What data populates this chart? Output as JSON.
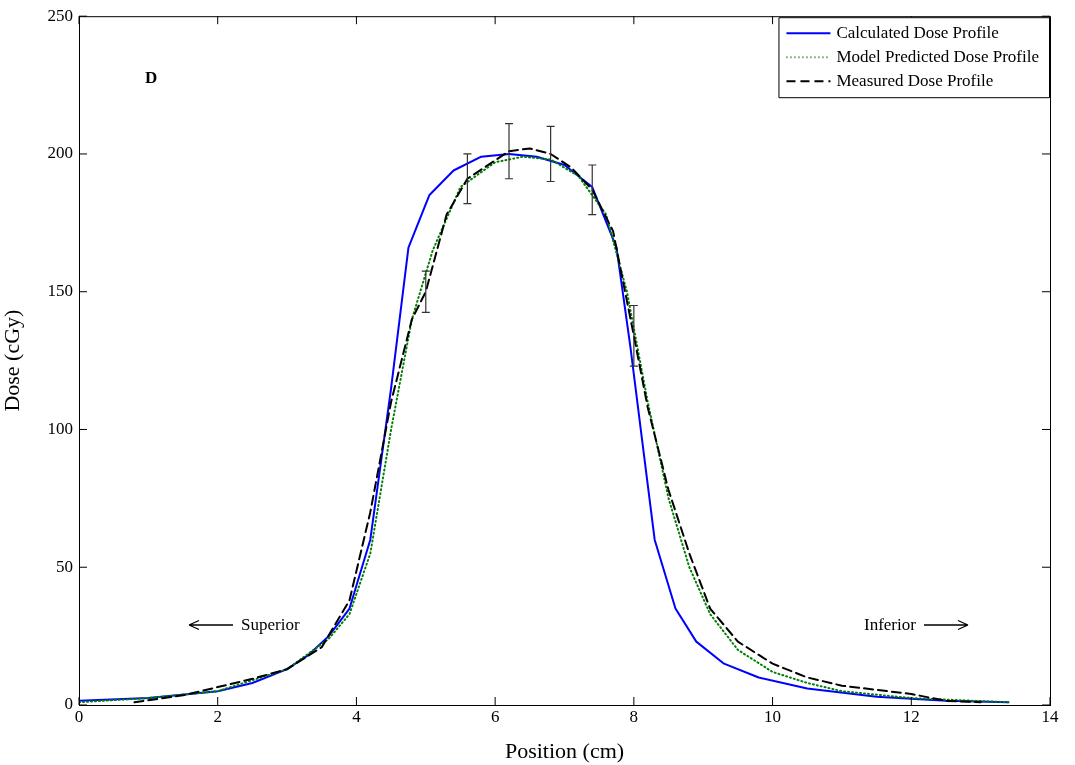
{
  "chart_data": {
    "type": "line",
    "xlabel": "Position (cm)",
    "ylabel": "Dose (cGy)",
    "xlim": [
      0,
      14
    ],
    "xticks": [
      0,
      2,
      4,
      6,
      8,
      10,
      12,
      14
    ],
    "ylim": [
      0,
      250
    ],
    "yticks": [
      0,
      50,
      100,
      150,
      200,
      250
    ],
    "grid": false,
    "legend": "top right",
    "marker": "none",
    "annotations": [
      "D",
      "Superior",
      "Inferior"
    ],
    "series": [
      {
        "name": "Calculated Dose Profile",
        "color": "#0000ff",
        "line_style": "solid",
        "x": [
          0,
          1,
          2,
          2.5,
          3,
          3.3,
          3.6,
          3.9,
          4.2,
          4.5,
          4.75,
          5.05,
          5.4,
          5.8,
          6.2,
          6.6,
          7,
          7.4,
          7.75,
          7.95,
          8.15,
          8.3,
          8.6,
          8.9,
          9.3,
          9.8,
          10.5,
          11.5,
          12.5,
          13.4
        ],
        "values": [
          1.5,
          2.5,
          5,
          8,
          13,
          18,
          25,
          35,
          60,
          115,
          166,
          185,
          194,
          199,
          200,
          199,
          196,
          188,
          166,
          130,
          90,
          60,
          35,
          23,
          15,
          10,
          6,
          3,
          1.5,
          1
        ]
      },
      {
        "name": "Model Predicted Dose Profile",
        "color": "#008000",
        "line_style": "dotted",
        "x": [
          0,
          1,
          2,
          3,
          3.6,
          3.9,
          4.2,
          4.5,
          4.8,
          5.1,
          5.5,
          6,
          6.4,
          6.8,
          7.2,
          7.6,
          7.9,
          8.2,
          8.5,
          8.8,
          9.1,
          9.5,
          10,
          10.5,
          11,
          12,
          13.4
        ],
        "values": [
          1,
          2.5,
          5,
          13,
          24,
          33,
          55,
          100,
          140,
          165,
          188,
          197,
          199,
          198,
          192,
          178,
          150,
          110,
          75,
          50,
          33,
          20,
          12,
          8,
          5,
          2.5,
          1
        ]
      },
      {
        "name": "Measured Dose Profile",
        "color": "#000000",
        "line_style": "dashed",
        "x": [
          0.8,
          1.5,
          2,
          2.5,
          3,
          3.5,
          3.9,
          4.2,
          4.5,
          4.8,
          5,
          5.3,
          5.6,
          6.2,
          6.5,
          6.8,
          7.1,
          7.4,
          7.7,
          8,
          8.2,
          8.5,
          8.8,
          9.1,
          9.5,
          10,
          10.5,
          11,
          11.5,
          12,
          12.5,
          13
        ],
        "values": [
          1,
          3.5,
          6.5,
          9.5,
          13,
          21,
          38,
          70,
          110,
          140,
          150,
          178,
          191,
          201,
          202,
          200,
          195,
          187,
          172,
          134,
          108,
          78,
          55,
          35,
          23,
          15,
          10,
          7,
          5.5,
          4,
          1.5,
          1
        ],
        "errors": [
          null,
          null,
          null,
          null,
          null,
          null,
          null,
          null,
          null,
          null,
          7.5,
          null,
          9,
          10,
          null,
          10,
          null,
          9,
          null,
          11,
          null,
          null,
          null,
          null,
          null,
          null,
          null,
          null,
          null,
          null,
          null,
          null
        ]
      }
    ]
  }
}
